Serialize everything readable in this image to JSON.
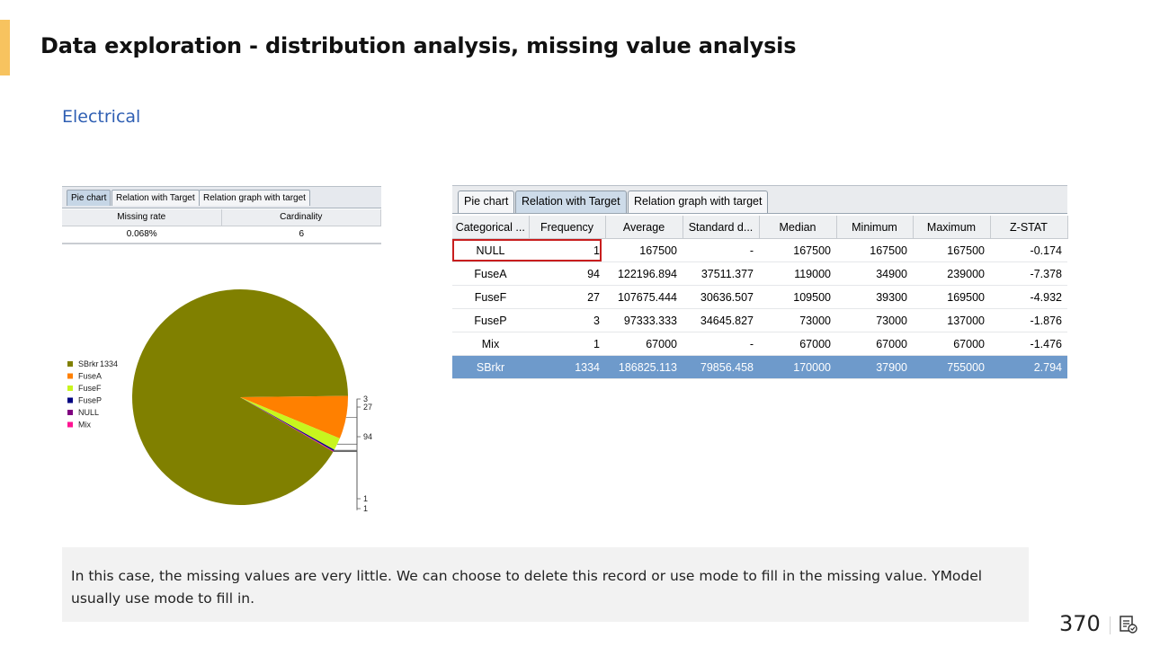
{
  "slide": {
    "title": "Data exploration - distribution analysis, missing value analysis",
    "section": "Electrical",
    "note": "In this case, the missing values are very little. We can choose to delete this record or use mode to fill in the missing value. YModel usually use mode to fill in.",
    "page_number": "370",
    "accent_color": "#f7c35f"
  },
  "left_panel": {
    "tabs": [
      "Pie chart",
      "Relation with Target",
      "Relation graph with target"
    ],
    "active_tab": "Pie chart",
    "summary_headers": [
      "Missing rate",
      "Cardinality"
    ],
    "summary_values": [
      "0.068%",
      "6"
    ]
  },
  "chart_data": {
    "type": "pie",
    "categories": [
      "SBrkr",
      "FuseA",
      "FuseF",
      "FuseP",
      "NULL",
      "Mix"
    ],
    "values": [
      1334,
      94,
      27,
      3,
      1,
      1
    ],
    "colors": [
      "#808000",
      "#ff8000",
      "#c8f51e",
      "#000080",
      "#800080",
      "#ff1493"
    ],
    "legend": [
      "SBrkr",
      "FuseA",
      "FuseF",
      "FuseP",
      "NULL",
      "Mix"
    ],
    "legend_position": "left",
    "slice_labels": [
      "1334",
      "94",
      "27",
      "3",
      "1",
      "1"
    ]
  },
  "right_panel": {
    "tabs": [
      "Pie chart",
      "Relation with Target",
      "Relation graph with target"
    ],
    "active_tab": "Relation with Target",
    "columns": [
      "Categorical ...",
      "Frequency",
      "Average",
      "Standard d...",
      "Median",
      "Minimum",
      "Maximum",
      "Z-STAT"
    ],
    "rows": [
      [
        "NULL",
        "1",
        "167500",
        "-",
        "167500",
        "167500",
        "167500",
        "-0.174"
      ],
      [
        "FuseA",
        "94",
        "122196.894",
        "37511.377",
        "119000",
        "34900",
        "239000",
        "-7.378"
      ],
      [
        "FuseF",
        "27",
        "107675.444",
        "30636.507",
        "109500",
        "39300",
        "169500",
        "-4.932"
      ],
      [
        "FuseP",
        "3",
        "97333.333",
        "34645.827",
        "73000",
        "73000",
        "137000",
        "-1.876"
      ],
      [
        "Mix",
        "1",
        "67000",
        "-",
        "67000",
        "67000",
        "67000",
        "-1.476"
      ],
      [
        "SBrkr",
        "1334",
        "186825.113",
        "79856.458",
        "170000",
        "37900",
        "755000",
        "2.794"
      ]
    ],
    "selected_row": "SBrkr",
    "highlighted_row": "NULL",
    "selection_color": "#6e9acb",
    "highlight_color": "#c81e1e"
  }
}
